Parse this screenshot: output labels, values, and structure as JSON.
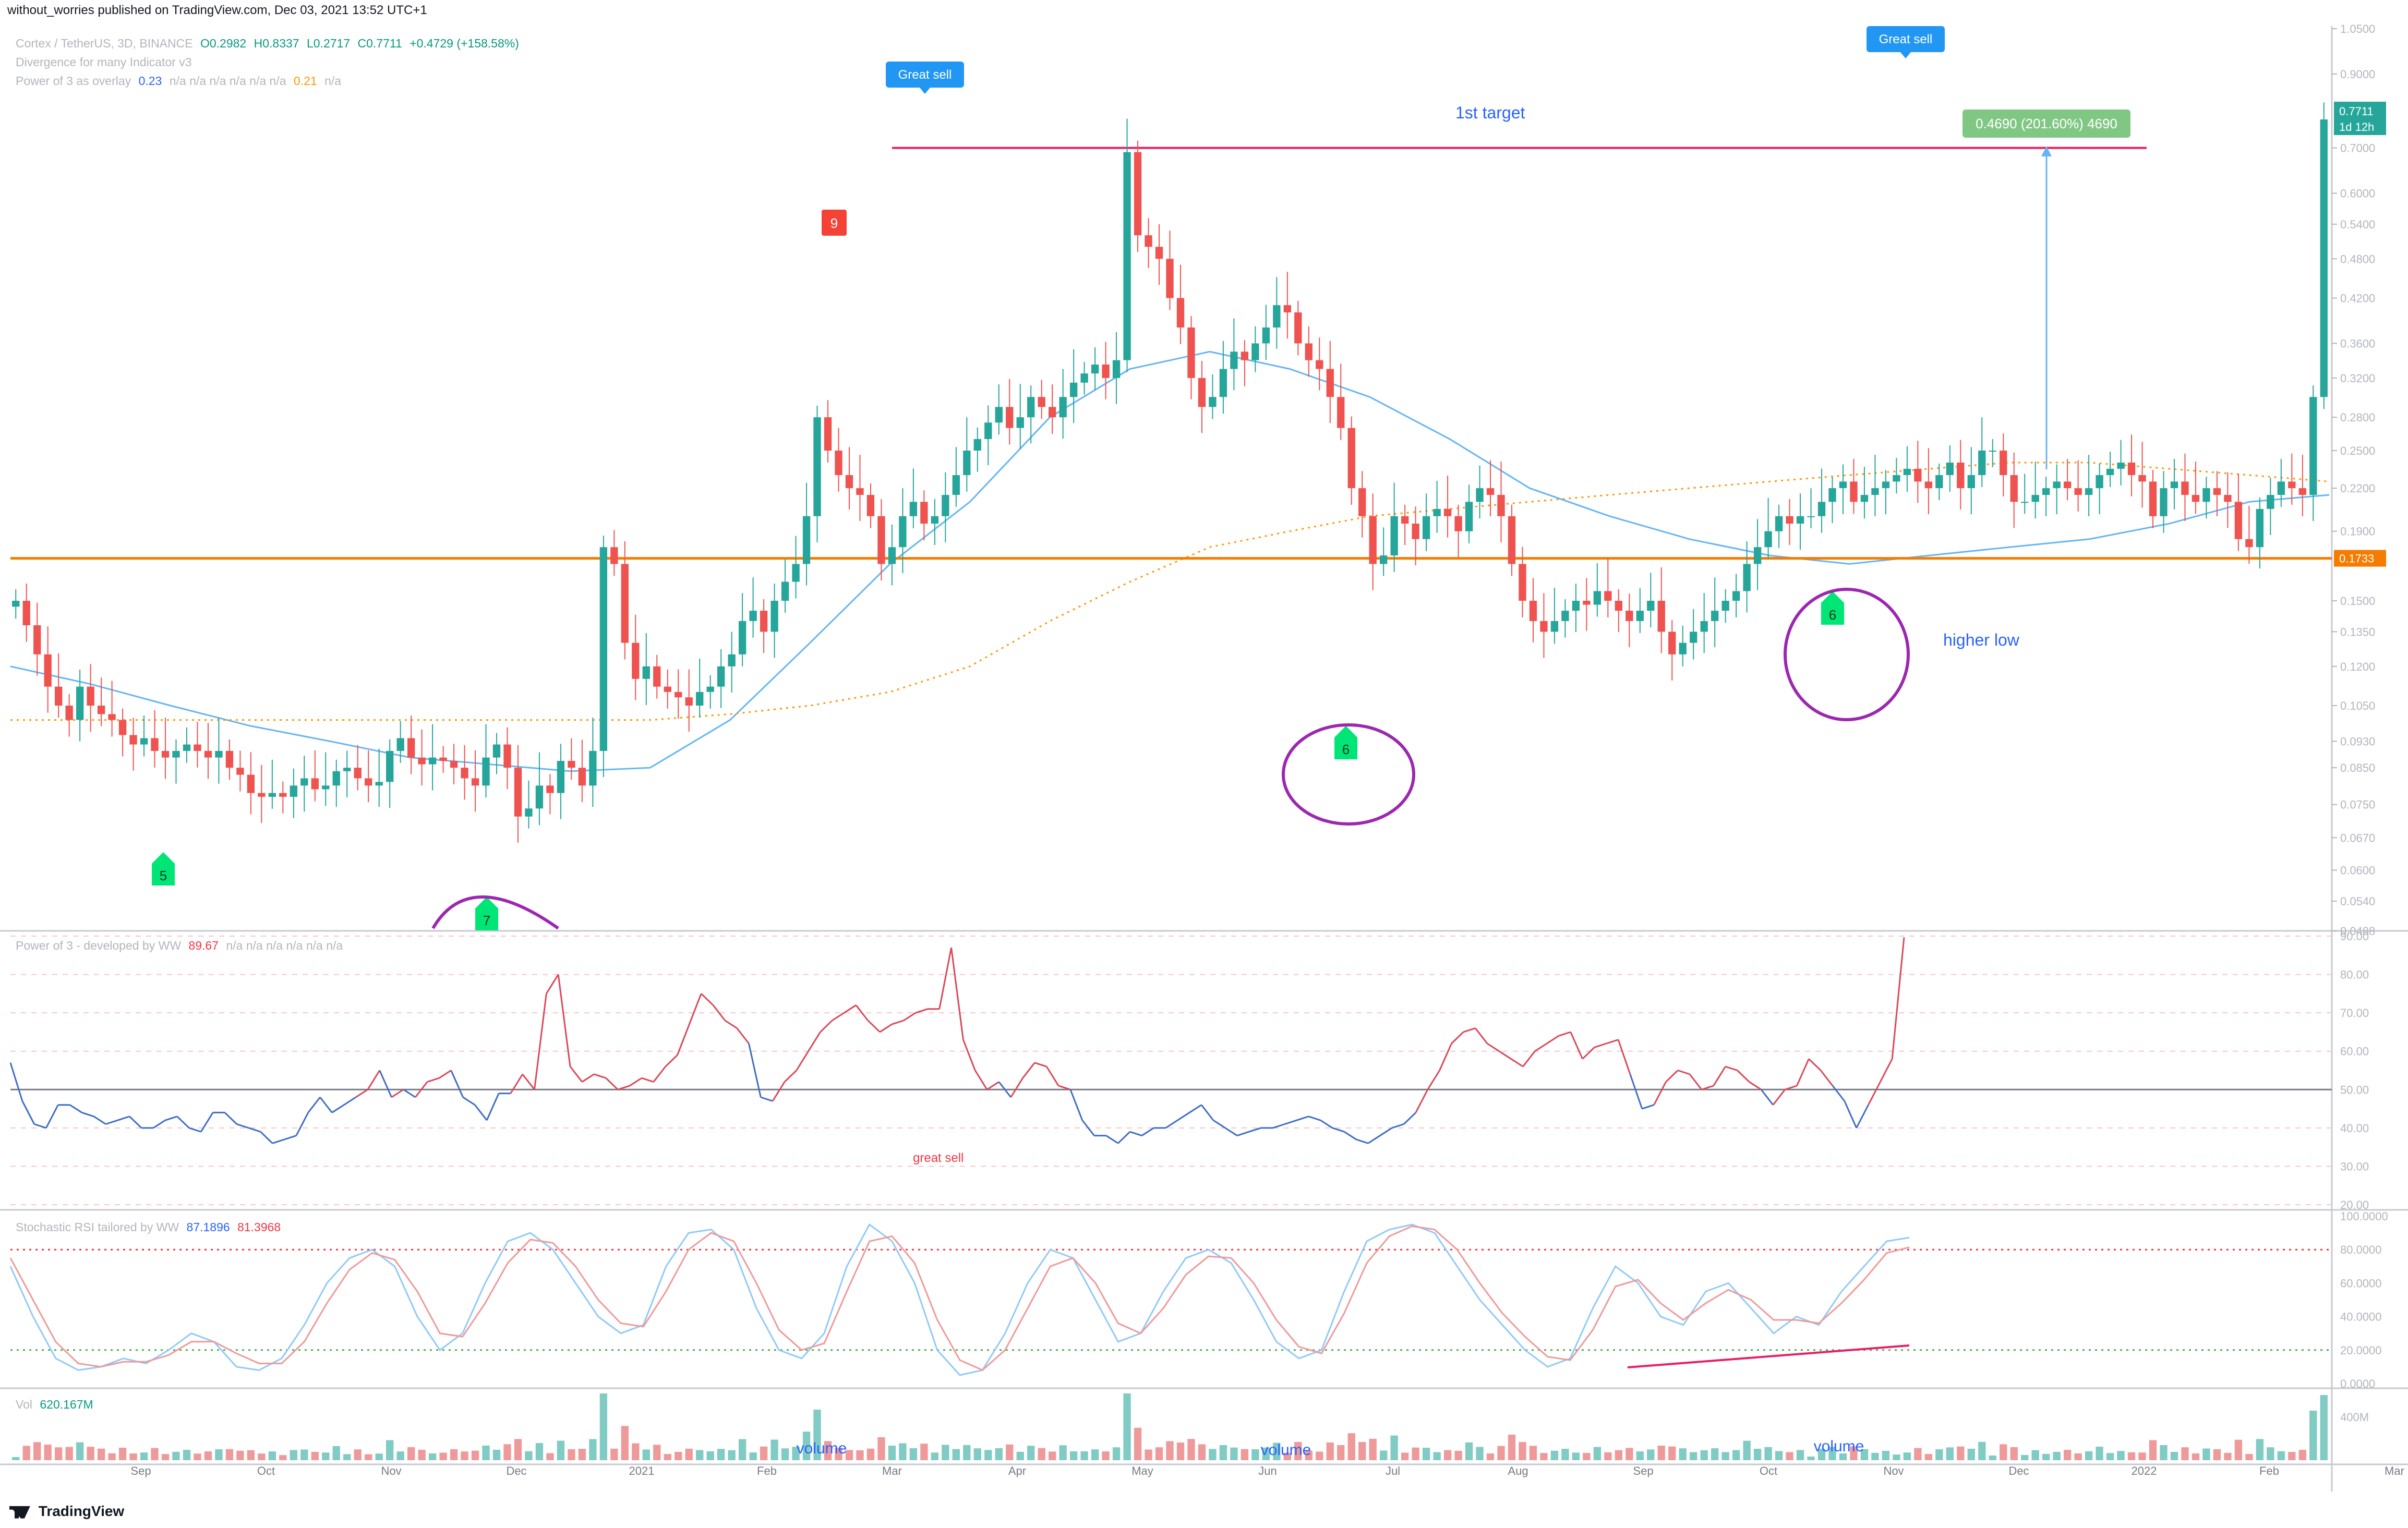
{
  "header": {
    "publisher": "without_worries published on TradingView.com, Dec 03, 2021 13:52 UTC+1"
  },
  "main_legend": {
    "symbol": "Cortex / TetherUS, 3D, BINANCE",
    "open": "O0.2982",
    "high": "H0.8337",
    "low": "L0.2717",
    "close": "C0.7711",
    "change": "+0.4729 (+158.58%)",
    "indicator1": "Divergence for many Indicator v3",
    "indicator2_name": "Power of 3 as overlay",
    "indicator2_v1": "0.23",
    "indicator2_na": "n/a  n/a  n/a  n/a  n/a  n/a",
    "indicator2_v2": "0.21",
    "indicator2_na2": "n/a"
  },
  "power_legend": {
    "name": "Power of 3 - developed by WW",
    "value": "89.67",
    "na": "n/a  n/a  n/a  n/a  n/a  n/a"
  },
  "stoch_legend": {
    "name": "Stochastic RSI tailored by WW",
    "k": "87.1896",
    "d": "81.3968"
  },
  "vol_legend": {
    "name": "Vol",
    "value": "620.167M"
  },
  "footer": {
    "brand": "TradingView"
  },
  "colors": {
    "up": "#26a69a",
    "down": "#ef5350",
    "ma_blue": "#64b5f6",
    "ma_orange": "#ff9800",
    "support": "#f57c00",
    "target": "#e91e63",
    "circle": "#9c27b0",
    "buy_signal": "#00e676",
    "sell_signal": "#f44336"
  },
  "chart_data": [
    {
      "type": "candlestick",
      "title": "Cortex / TetherUS, 3D, BINANCE",
      "price_axis": {
        "scale": "log",
        "ticks": [
          "1.0500",
          "0.9000",
          "0.7000",
          "0.6000",
          "0.5400",
          "0.4800",
          "0.4200",
          "0.3600",
          "0.3200",
          "0.2800",
          "0.2500",
          "0.2200",
          "0.1900",
          "0.1500",
          "0.1350",
          "0.1200",
          "0.1050",
          "0.0930",
          "0.0850",
          "0.0750",
          "0.0670",
          "0.0600",
          "0.0540",
          "0.0488"
        ],
        "last_price": "0.7711",
        "countdown": "1d 12h",
        "support_label": "0.1733"
      },
      "time_axis": [
        "Sep",
        "Oct",
        "Nov",
        "Dec",
        "2021",
        "Feb",
        "Mar",
        "Apr",
        "May",
        "Jun",
        "Jul",
        "Aug",
        "Sep",
        "Oct",
        "Nov",
        "Dec",
        "2022",
        "Feb",
        "Mar"
      ],
      "closes": [
        0.15,
        0.138,
        0.125,
        0.112,
        0.105,
        0.1,
        0.112,
        0.105,
        0.102,
        0.1,
        0.095,
        0.092,
        0.094,
        0.09,
        0.088,
        0.09,
        0.092,
        0.09,
        0.088,
        0.09,
        0.085,
        0.083,
        0.078,
        0.077,
        0.078,
        0.077,
        0.08,
        0.082,
        0.079,
        0.08,
        0.084,
        0.085,
        0.082,
        0.08,
        0.081,
        0.09,
        0.094,
        0.088,
        0.086,
        0.088,
        0.087,
        0.085,
        0.082,
        0.08,
        0.088,
        0.092,
        0.085,
        0.072,
        0.074,
        0.08,
        0.078,
        0.087,
        0.085,
        0.08,
        0.09,
        0.18,
        0.17,
        0.13,
        0.115,
        0.12,
        0.112,
        0.11,
        0.108,
        0.105,
        0.11,
        0.112,
        0.12,
        0.125,
        0.14,
        0.145,
        0.135,
        0.15,
        0.16,
        0.17,
        0.2,
        0.28,
        0.25,
        0.23,
        0.22,
        0.215,
        0.2,
        0.17,
        0.18,
        0.2,
        0.21,
        0.195,
        0.2,
        0.215,
        0.23,
        0.25,
        0.26,
        0.275,
        0.29,
        0.27,
        0.28,
        0.3,
        0.29,
        0.28,
        0.3,
        0.315,
        0.325,
        0.335,
        0.32,
        0.34,
        0.69,
        0.52,
        0.5,
        0.48,
        0.42,
        0.38,
        0.32,
        0.29,
        0.3,
        0.33,
        0.35,
        0.34,
        0.36,
        0.38,
        0.41,
        0.4,
        0.36,
        0.34,
        0.33,
        0.3,
        0.27,
        0.22,
        0.2,
        0.17,
        0.175,
        0.2,
        0.195,
        0.185,
        0.2,
        0.205,
        0.2,
        0.19,
        0.21,
        0.22,
        0.215,
        0.2,
        0.17,
        0.15,
        0.14,
        0.135,
        0.14,
        0.145,
        0.15,
        0.148,
        0.155,
        0.15,
        0.145,
        0.14,
        0.145,
        0.15,
        0.135,
        0.125,
        0.13,
        0.135,
        0.14,
        0.145,
        0.15,
        0.155,
        0.17,
        0.18,
        0.19,
        0.2,
        0.195,
        0.2,
        0.2,
        0.21,
        0.22,
        0.225,
        0.21,
        0.215,
        0.22,
        0.225,
        0.23,
        0.235,
        0.225,
        0.22,
        0.23,
        0.24,
        0.22,
        0.23,
        0.25,
        0.25,
        0.23,
        0.21,
        0.21,
        0.215,
        0.22,
        0.225,
        0.22,
        0.215,
        0.22,
        0.23,
        0.235,
        0.24,
        0.23,
        0.225,
        0.2,
        0.22,
        0.225,
        0.215,
        0.21,
        0.22,
        0.215,
        0.21,
        0.185,
        0.18,
        0.205,
        0.215,
        0.225,
        0.22,
        0.215,
        0.3,
        0.7711
      ],
      "moving_average_blue": [
        0.12,
        0.113,
        0.105,
        0.098,
        0.093,
        0.088,
        0.086,
        0.084,
        0.085,
        0.1,
        0.13,
        0.17,
        0.21,
        0.28,
        0.33,
        0.35,
        0.33,
        0.3,
        0.26,
        0.22,
        0.2,
        0.185,
        0.175,
        0.17,
        0.175,
        0.18,
        0.185,
        0.195,
        0.21,
        0.215
      ],
      "moving_average_orange": [
        0.1,
        0.1,
        0.1,
        0.1,
        0.1,
        0.1,
        0.1,
        0.1,
        0.1,
        0.102,
        0.105,
        0.11,
        0.12,
        0.14,
        0.16,
        0.18,
        0.19,
        0.2,
        0.205,
        0.21,
        0.215,
        0.22,
        0.225,
        0.23,
        0.235,
        0.24,
        0.24,
        0.235,
        0.23,
        0.225
      ],
      "annotations": [
        {
          "kind": "sell_label",
          "text": "Great sell"
        },
        {
          "kind": "sell_label",
          "text": "Great sell"
        },
        {
          "kind": "sell_count",
          "text": "9"
        },
        {
          "kind": "buy_count",
          "text": "5"
        },
        {
          "kind": "buy_count",
          "text": "7"
        },
        {
          "kind": "buy_count",
          "text": "6"
        },
        {
          "kind": "buy_count",
          "text": "6"
        },
        {
          "kind": "text",
          "text": "1st target"
        },
        {
          "kind": "text",
          "text": "higher low"
        },
        {
          "kind": "measure",
          "text": "0.4690 (201.60%) 4690"
        }
      ],
      "levels": [
        {
          "name": "1st target",
          "price": 0.7
        },
        {
          "name": "support",
          "price": 0.1733
        }
      ]
    },
    {
      "type": "line",
      "title": "Power of 3 - developed by WW",
      "ylim": [
        20,
        90
      ],
      "ticks": [
        "90.00",
        "80.00",
        "70.00",
        "60.00",
        "50.00",
        "40.00",
        "30.00",
        "20.00"
      ],
      "values": [
        57,
        47,
        41,
        40,
        46,
        46,
        44,
        43,
        41,
        42,
        43,
        40,
        40,
        42,
        43,
        40,
        39,
        44,
        44,
        41,
        40,
        39,
        36,
        37,
        38,
        44,
        48,
        44,
        46,
        48,
        50,
        55,
        48,
        50,
        48,
        52,
        53,
        55,
        48,
        46,
        42,
        49,
        49,
        54,
        50,
        75,
        80,
        56,
        52,
        54,
        53,
        50,
        51,
        53,
        52,
        56,
        59,
        67,
        75,
        72,
        68,
        66,
        62,
        48,
        47,
        52,
        55,
        60,
        65,
        68,
        70,
        72,
        68,
        65,
        67,
        68,
        70,
        71,
        71,
        87,
        63,
        55,
        50,
        52,
        48,
        53,
        57,
        56,
        51,
        50,
        42,
        38,
        38,
        36,
        39,
        38,
        40,
        40,
        42,
        44,
        46,
        42,
        40,
        38,
        39,
        40,
        40,
        41,
        42,
        43,
        42,
        40,
        39,
        37,
        36,
        38,
        40,
        41,
        44,
        50,
        55,
        62,
        65,
        66,
        62,
        60,
        58,
        56,
        60,
        62,
        64,
        65,
        58,
        61,
        62,
        63,
        54,
        45,
        46,
        52,
        55,
        54,
        50,
        51,
        56,
        55,
        52,
        50,
        46,
        50,
        51,
        58,
        55,
        51,
        47,
        40,
        46,
        52,
        58,
        89.67
      ],
      "label": "great sell"
    },
    {
      "type": "line",
      "title": "Stochastic RSI tailored by WW",
      "ylim": [
        0,
        100
      ],
      "ticks": [
        "100.0000",
        "80.0000",
        "60.0000",
        "40.0000",
        "20.0000",
        "0.0000"
      ],
      "series": [
        {
          "name": "K",
          "values": [
            70,
            40,
            15,
            8,
            10,
            15,
            12,
            20,
            30,
            25,
            10,
            8,
            15,
            35,
            60,
            75,
            80,
            70,
            40,
            20,
            30,
            60,
            85,
            90,
            80,
            60,
            40,
            30,
            35,
            70,
            90,
            92,
            80,
            45,
            20,
            15,
            30,
            70,
            95,
            85,
            60,
            20,
            5,
            8,
            30,
            60,
            80,
            75,
            50,
            25,
            30,
            55,
            75,
            80,
            72,
            50,
            25,
            15,
            20,
            55,
            85,
            92,
            95,
            90,
            70,
            50,
            35,
            20,
            10,
            15,
            45,
            70,
            60,
            40,
            35,
            55,
            60,
            45,
            30,
            40,
            35,
            55,
            70,
            85,
            87.1896
          ]
        },
        {
          "name": "D",
          "values": [
            75,
            50,
            25,
            12,
            10,
            13,
            13,
            17,
            25,
            25,
            18,
            12,
            12,
            25,
            48,
            68,
            78,
            74,
            55,
            30,
            28,
            48,
            72,
            86,
            84,
            70,
            50,
            36,
            34,
            55,
            80,
            90,
            85,
            60,
            32,
            20,
            24,
            55,
            85,
            88,
            72,
            38,
            14,
            8,
            20,
            45,
            70,
            75,
            60,
            36,
            30,
            45,
            65,
            76,
            75,
            60,
            38,
            22,
            18,
            42,
            72,
            88,
            94,
            92,
            80,
            60,
            42,
            28,
            16,
            14,
            32,
            58,
            62,
            48,
            38,
            48,
            56,
            50,
            38,
            38,
            36,
            48,
            62,
            78,
            81.3968
          ]
        }
      ],
      "levels": [
        80,
        20
      ]
    },
    {
      "type": "bar",
      "title": "Vol",
      "ticks": [
        "400M"
      ],
      "labels": [
        "volume",
        "volume",
        "volume"
      ],
      "last": "620.167M"
    }
  ]
}
